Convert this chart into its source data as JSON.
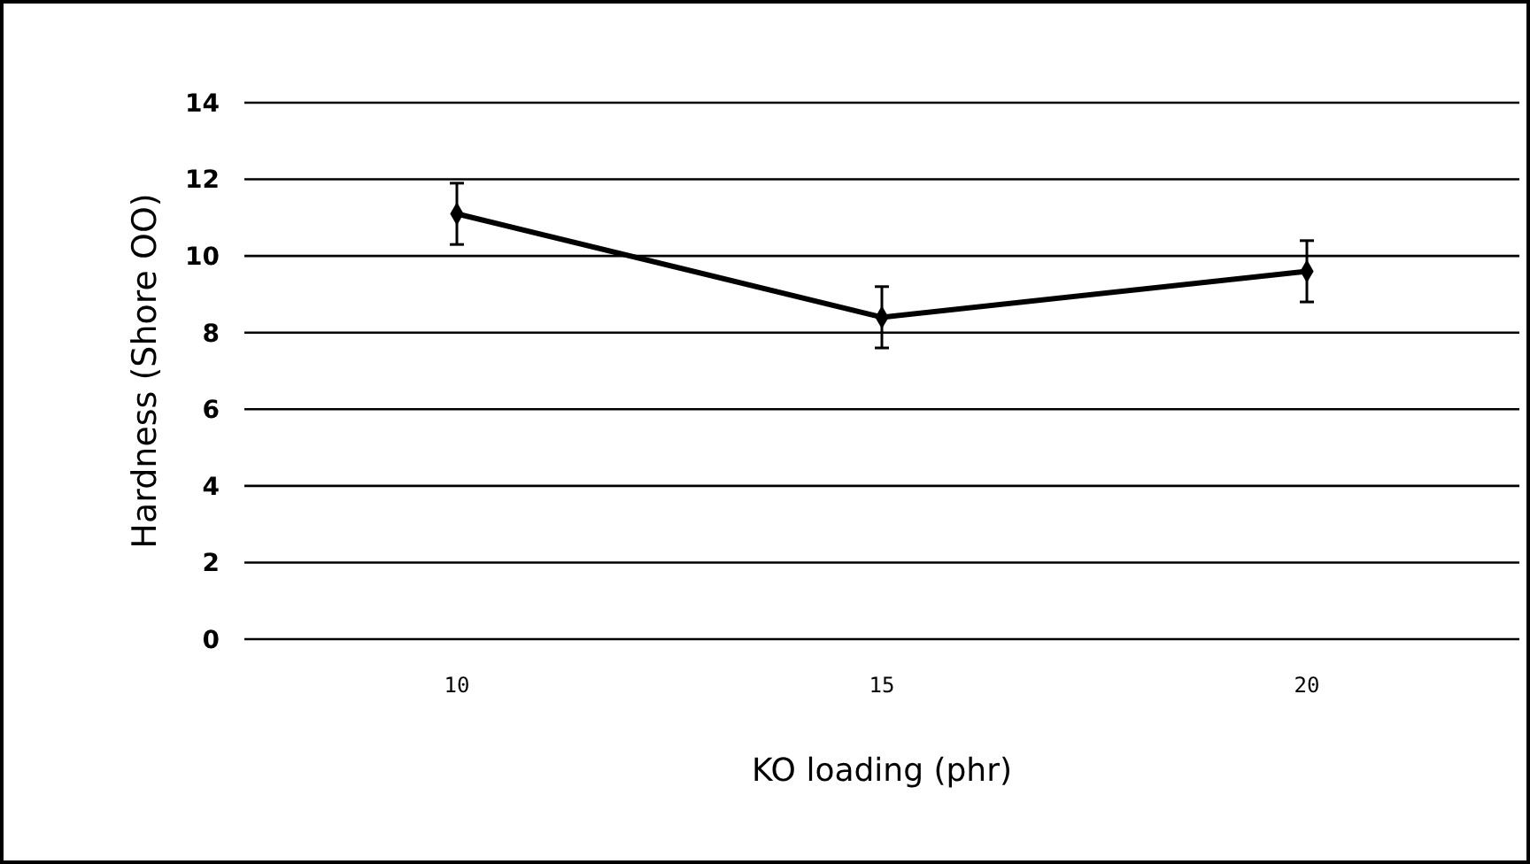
{
  "chart_data": {
    "type": "line",
    "xlabel": "KO loading (phr)",
    "ylabel": "Hardness (Shore OO)",
    "categories": [
      "10",
      "15",
      "20"
    ],
    "series": [
      {
        "color": "#000000",
        "values": [
          11.1,
          8.4,
          9.6
        ],
        "errors": [
          0.8,
          0.8,
          0.8
        ]
      }
    ],
    "ylim": [
      0,
      14
    ],
    "yticks": [
      0,
      2,
      4,
      6,
      8,
      10,
      12,
      14
    ],
    "grid": "y",
    "marker": "diamond",
    "line_style": "solid"
  }
}
